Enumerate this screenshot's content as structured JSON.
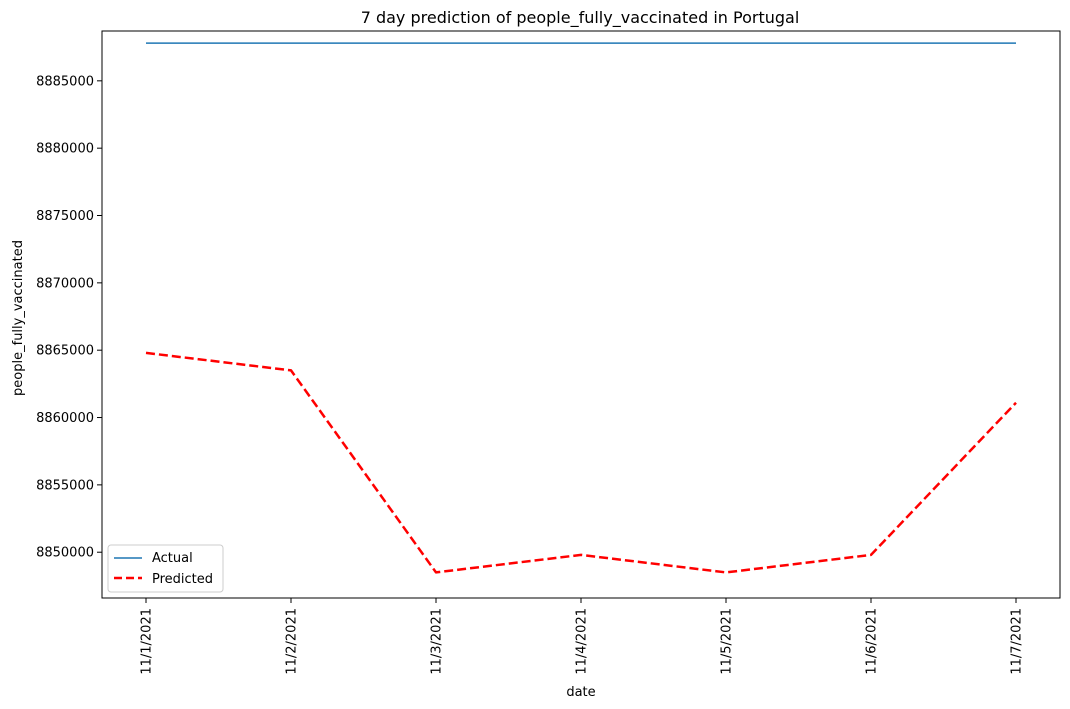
{
  "chart_data": {
    "type": "line",
    "title": "7 day prediction of people_fully_vaccinated in Portugal",
    "xlabel": "date",
    "ylabel": "people_fully_vaccinated",
    "categories": [
      "11/1/2021",
      "11/2/2021",
      "11/3/2021",
      "11/4/2021",
      "11/5/2021",
      "11/6/2021",
      "11/7/2021"
    ],
    "yticks": [
      8850000,
      8855000,
      8860000,
      8865000,
      8870000,
      8875000,
      8880000,
      8885000
    ],
    "ylim": [
      8846600,
      8888700
    ],
    "grid": false,
    "legend_position": "lower-left",
    "series": [
      {
        "name": "Actual",
        "values": [
          8887800,
          8887800,
          8887800,
          8887800,
          8887800,
          8887800,
          8887800
        ],
        "color": "#1f77b4",
        "style": "solid"
      },
      {
        "name": "Predicted",
        "values": [
          8864800,
          8863500,
          8848500,
          8849800,
          8848500,
          8849800,
          8861100
        ],
        "color": "#ff0000",
        "style": "dashed"
      }
    ]
  }
}
